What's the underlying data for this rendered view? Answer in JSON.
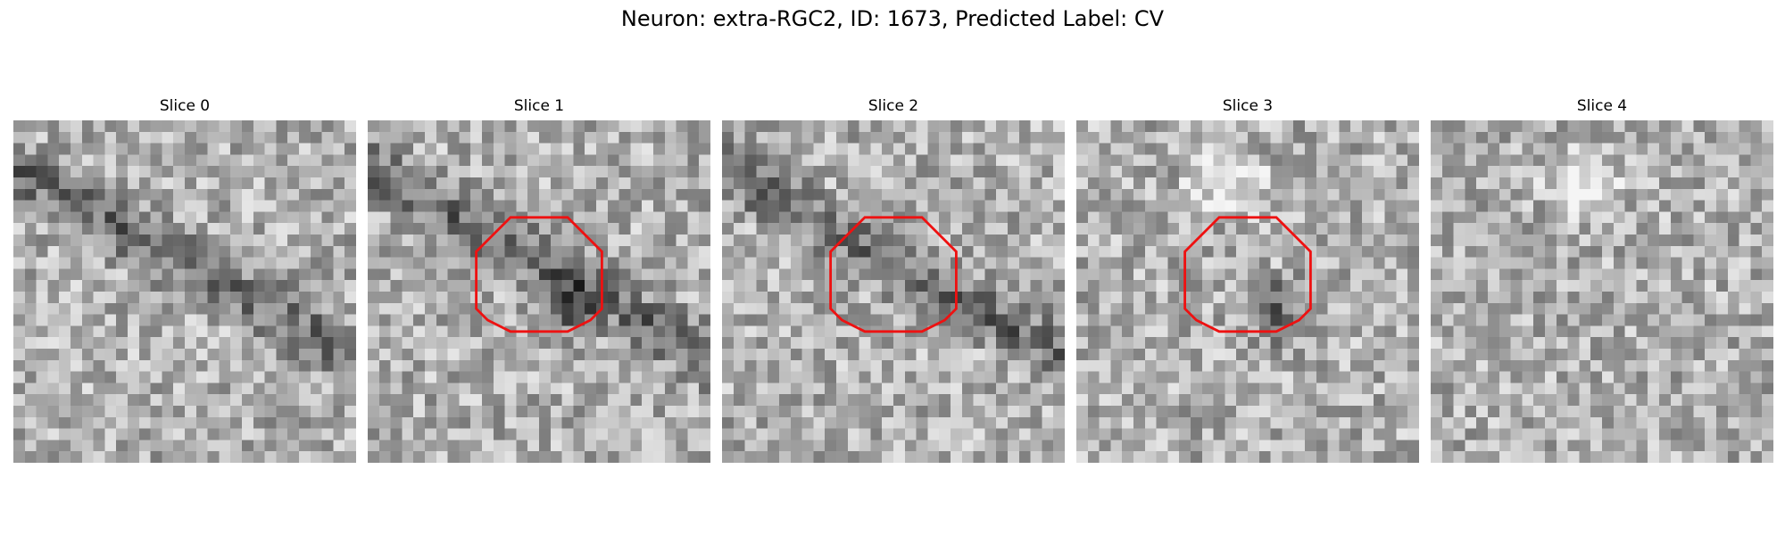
{
  "figure": {
    "title": "Neuron: extra-RGC2, ID: 1673, Predicted Label: CV"
  },
  "panels": [
    {
      "title": "Slice 0",
      "has_contour": false,
      "seed": 11,
      "dark_band": true,
      "dark_spot": false,
      "bright_spot": false
    },
    {
      "title": "Slice 1",
      "has_contour": true,
      "seed": 23,
      "dark_band": true,
      "dark_spot": true,
      "bright_spot": false
    },
    {
      "title": "Slice 2",
      "has_contour": true,
      "seed": 37,
      "dark_band": true,
      "dark_spot": false,
      "bright_spot": false
    },
    {
      "title": "Slice 3",
      "has_contour": true,
      "seed": 41,
      "dark_band": false,
      "dark_spot": true,
      "bright_spot": true
    },
    {
      "title": "Slice 4",
      "has_contour": false,
      "seed": 53,
      "dark_band": false,
      "dark_spot": false,
      "bright_spot": true
    }
  ],
  "colors": {
    "contour": "#ee1111"
  }
}
